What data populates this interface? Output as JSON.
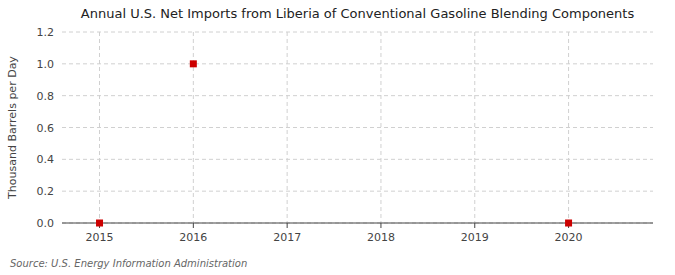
{
  "chart_data": {
    "type": "scatter",
    "title": "Annual U.S. Net Imports from Liberia of Conventional Gasoline Blending Components",
    "y_label": "Thousand Barrels per Day",
    "source": "Source: U.S. Energy Information Administration",
    "x": [
      2015,
      2016,
      2020
    ],
    "values": [
      0.0,
      1.0,
      0.0
    ],
    "color": "#cc0000",
    "marker": "square",
    "xlim": [
      2014.6,
      2020.9
    ],
    "ylim": [
      0.0,
      1.2
    ],
    "xticks": [
      2015,
      2016,
      2017,
      2018,
      2019,
      2020
    ],
    "yticks": [
      {
        "value": 0,
        "label": "0.0"
      },
      0.2,
      0.4,
      0.6,
      0.8,
      {
        "value": 1,
        "label": "1.0"
      },
      1.2
    ],
    "grid": true
  }
}
